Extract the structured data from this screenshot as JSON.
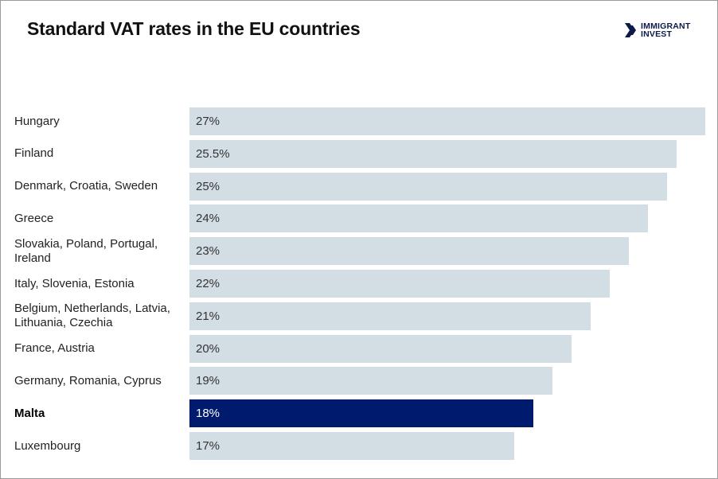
{
  "chart_data": {
    "type": "bar",
    "orientation": "horizontal",
    "title": "Standard VAT rates in the EU countries",
    "categories": [
      "Hungary",
      "Finland",
      "Denmark, Croatia, Sweden",
      "Greece",
      "Slovakia, Poland, Portugal, Ireland",
      "Italy, Slovenia, Estonia",
      "Belgium, Netherlands, Latvia, Lithuania, Czechia",
      "France, Austria",
      "Germany, Romania, Cyprus",
      "Malta",
      "Luxembourg"
    ],
    "values": [
      27,
      25.5,
      25,
      24,
      23,
      22,
      21,
      20,
      19,
      18,
      17
    ],
    "value_labels": [
      "27%",
      "25.5%",
      "25%",
      "24%",
      "23%",
      "22%",
      "21%",
      "20%",
      "19%",
      "18%",
      "17%"
    ],
    "color": "#d3dde4",
    "colors": [
      "#d3dde4",
      "#d3dde4",
      "#d3dde4",
      "#d3dde4",
      "#d3dde4",
      "#d3dde4",
      "#d3dde4",
      "#d3dde4",
      "#d3dde4",
      "#001a6e",
      "#d3dde4"
    ],
    "xlim": [
      0,
      27
    ]
  },
  "logo": {
    "lines": [
      "IMMIGRANT",
      "INVEST"
    ]
  }
}
